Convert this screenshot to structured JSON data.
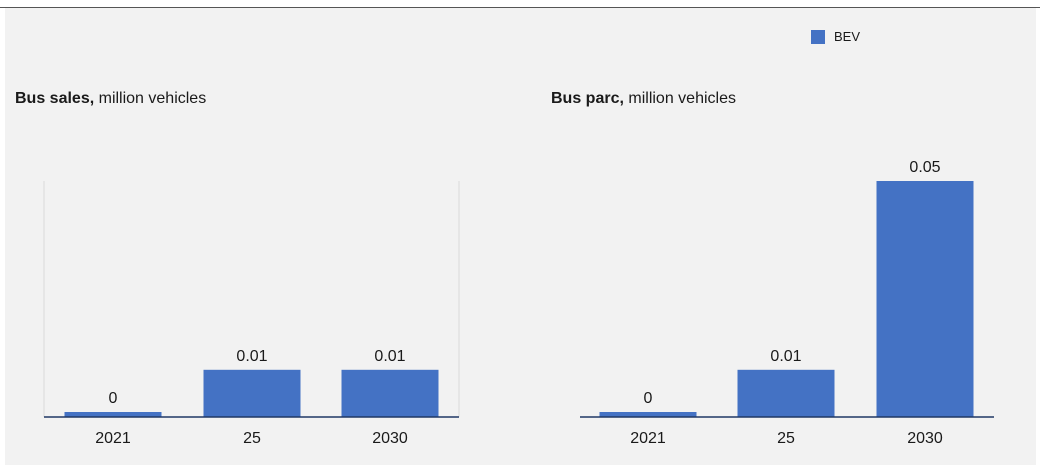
{
  "legend": {
    "label": "BEV",
    "color": "#4472c4"
  },
  "chart_data": [
    {
      "type": "bar",
      "title": "Bus sales,",
      "subtitle": "million vehicles",
      "categories": [
        "2021",
        "25",
        "2030"
      ],
      "series": [
        {
          "name": "BEV",
          "values": [
            0,
            0.01,
            0.01
          ],
          "labels": [
            "0",
            "0.01",
            "0.01"
          ]
        }
      ],
      "ylim": [
        0,
        0.05
      ],
      "grid": false,
      "legend_position": "top-right"
    },
    {
      "type": "bar",
      "title": "Bus parc,",
      "subtitle": "million vehicles",
      "categories": [
        "2021",
        "25",
        "2030"
      ],
      "series": [
        {
          "name": "BEV",
          "values": [
            0,
            0.01,
            0.05
          ],
          "labels": [
            "0",
            "0.01",
            "0.05"
          ]
        }
      ],
      "ylim": [
        0,
        0.05
      ],
      "grid": false,
      "legend_position": "top-right"
    }
  ]
}
